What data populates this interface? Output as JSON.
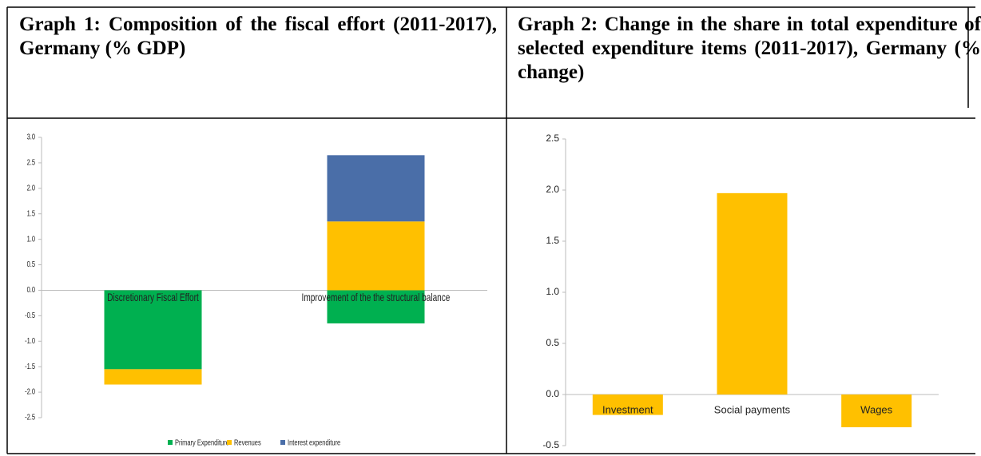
{
  "chart_data": [
    {
      "type": "stacked_bar",
      "title": "Graph 1: Composition of the fiscal effort (2011-2017), Germany (% GDP)",
      "categories": [
        "Discretionary Fiscal Effort",
        "Improvement of the the structural balance"
      ],
      "series": [
        {
          "name": "Primary Expenditure",
          "color": "#00b050",
          "values": [
            -1.55,
            -0.65
          ]
        },
        {
          "name": "Revenues",
          "color": "#ffc000",
          "values": [
            -0.3,
            1.35
          ]
        },
        {
          "name": "Interest expenditure",
          "color": "#4a6ea8",
          "values": [
            0,
            1.3
          ]
        }
      ],
      "ylim": [
        -2.5,
        3.0
      ],
      "yticks": [
        {
          "value": 3,
          "label": "3.0"
        },
        2.5,
        {
          "value": 2,
          "label": "2.0"
        },
        1.5,
        {
          "value": 1,
          "label": "1.0"
        },
        0.5,
        {
          "value": 0,
          "label": "0.0"
        },
        -0.5,
        {
          "value": -1,
          "label": "-1.0"
        },
        -1.5,
        {
          "value": -2,
          "label": "-2.0"
        },
        -2.5
      ],
      "legend": "bottom"
    },
    {
      "type": "bar",
      "title": "Graph 2: Change in the share in total expenditure of selected expenditure items (2011-2017), Germany (% change)",
      "categories": [
        "Investment",
        "Social payments",
        "Wages"
      ],
      "values": [
        -0.2,
        1.97,
        -0.32
      ],
      "color": "#ffc000",
      "ylim": [
        -0.5,
        2.5
      ],
      "yticks": [
        {
          "value": 2.5,
          "label": "2.5"
        },
        {
          "value": 2,
          "label": "2.0"
        },
        1.5,
        {
          "value": 1,
          "label": "1.0"
        },
        0.5,
        {
          "value": 0,
          "label": "0.0"
        },
        -0.5
      ]
    }
  ]
}
